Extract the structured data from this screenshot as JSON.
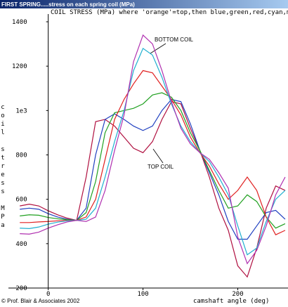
{
  "chart_data": {
    "type": "line",
    "window_title": "FIRST SPRING.....stress on each spring coil (MPa)",
    "title": "COIL STRESS (MPa) where 'orange'=top,then blue,green,red,cyan,ma",
    "x_label": "camshaft angle (deg)",
    "y_label": "coil stress MPa",
    "footer": "© Prof. Blair & Associates 2002",
    "annotations": [
      "BOTTOM COIL",
      "TOP COIL"
    ],
    "x": [
      -30,
      -20,
      -10,
      0,
      10,
      20,
      30,
      40,
      50,
      60,
      70,
      80,
      90,
      100,
      110,
      120,
      130,
      140,
      150,
      160,
      170,
      180,
      190,
      200,
      210,
      220,
      230,
      240,
      250
    ],
    "series": [
      {
        "color": "#b01040",
        "values": [
          570,
          578,
          570,
          548,
          530,
          515,
          505,
          700,
          950,
          960,
          930,
          880,
          830,
          810,
          860,
          960,
          1040,
          1030,
          920,
          820,
          700,
          560,
          460,
          300,
          250,
          380,
          560,
          660,
          640
        ]
      },
      {
        "color": "#2040c0",
        "values": [
          555,
          560,
          555,
          535,
          520,
          510,
          505,
          560,
          800,
          960,
          985,
          960,
          930,
          910,
          930,
          1000,
          1050,
          1040,
          940,
          820,
          720,
          620,
          500,
          420,
          420,
          480,
          540,
          550,
          510
        ]
      },
      {
        "color": "#20a020",
        "values": [
          525,
          530,
          528,
          518,
          512,
          508,
          505,
          540,
          680,
          900,
          990,
          1000,
          1010,
          1030,
          1070,
          1080,
          1060,
          1000,
          900,
          820,
          730,
          640,
          560,
          570,
          620,
          590,
          520,
          470,
          490
        ]
      },
      {
        "color": "#e02020",
        "values": [
          495,
          495,
          498,
          500,
          503,
          505,
          505,
          520,
          600,
          780,
          960,
          1050,
          1120,
          1180,
          1170,
          1110,
          1050,
          980,
          880,
          810,
          750,
          670,
          600,
          640,
          700,
          640,
          520,
          440,
          460
        ]
      },
      {
        "color": "#20b0d0",
        "values": [
          470,
          468,
          475,
          488,
          497,
          503,
          505,
          510,
          560,
          700,
          860,
          1000,
          1180,
          1280,
          1250,
          1150,
          1030,
          930,
          860,
          810,
          770,
          700,
          620,
          480,
          350,
          380,
          500,
          600,
          640
        ]
      },
      {
        "color": "#b030b0",
        "values": [
          445,
          443,
          452,
          470,
          485,
          498,
          505,
          500,
          520,
          640,
          820,
          980,
          1220,
          1340,
          1300,
          1180,
          1040,
          920,
          850,
          810,
          780,
          720,
          650,
          430,
          310,
          370,
          480,
          620,
          700
        ]
      }
    ],
    "xlim": [
      -42,
      253
    ],
    "xticks": [
      0,
      100,
      200
    ],
    "ylim": [
      200,
      1400
    ],
    "yticks": [
      200,
      400,
      600,
      800,
      {
        "value": 1000,
        "label": "1e3"
      },
      1200,
      1400
    ]
  }
}
